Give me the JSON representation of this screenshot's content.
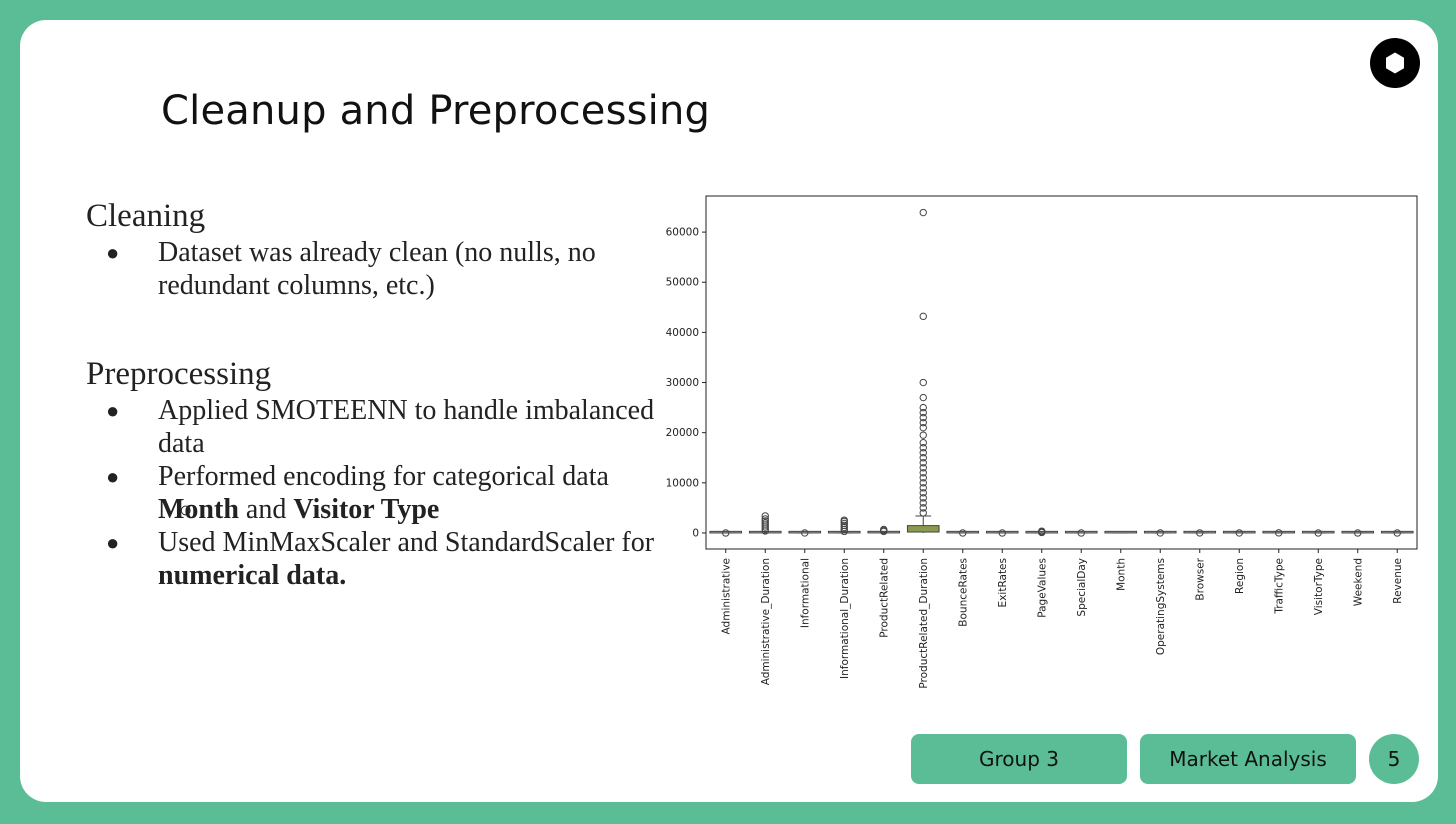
{
  "slide": {
    "title": "Cleanup and Preprocessing",
    "cleaning": {
      "heading": "Cleaning",
      "bullets": [
        "Dataset was already clean (no nulls, no redundant columns, etc.)"
      ]
    },
    "preprocessing": {
      "heading": "Preprocessing",
      "bullet1": "Applied SMOTEENN to handle imbalanced data",
      "bullet2": "Performed encoding for categorical data",
      "sub_part1": "Month",
      "sub_part2": " and ",
      "sub_part3": "Visitor Type",
      "bullet3_part1": "Used MinMaxScaler and StandardScaler for ",
      "bullet3_part2": "numerical data."
    },
    "footer": {
      "group": "Group 3",
      "topic": "Market Analysis",
      "page": "5"
    },
    "colors": {
      "accent": "#5bbd96",
      "box_fill": "#b0b4a8",
      "highlight_box": "#8a9a4e"
    },
    "icons": {
      "logo": "hexagon-logo-icon",
      "bullet": "filled-circle",
      "sub_bullet": "hollow-circle"
    }
  },
  "chart_data": {
    "type": "box",
    "categories": [
      "Administrative",
      "Administrative_Duration",
      "Informational",
      "Informational_Duration",
      "ProductRelated",
      "ProductRelated_Duration",
      "BounceRates",
      "ExitRates",
      "PageValues",
      "SpecialDay",
      "Month",
      "OperatingSystems",
      "Browser",
      "Region",
      "TrafficType",
      "VisitorType",
      "Weekend",
      "Revenue"
    ],
    "y_ticks": [
      0,
      10000,
      20000,
      30000,
      40000,
      50000,
      60000
    ],
    "ylim": [
      -3200,
      67200
    ],
    "boxes": [
      {
        "q1": 0,
        "q3": 4,
        "whisker_low": 0,
        "whisker_high": 10,
        "outliers": [
          0
        ]
      },
      {
        "q1": 0,
        "q3": 93,
        "whisker_low": 0,
        "whisker_high": 232,
        "outliers": [
          400,
          800,
          1200,
          1600,
          2000,
          2400,
          2800,
          3400
        ]
      },
      {
        "q1": 0,
        "q3": 0,
        "whisker_low": 0,
        "whisker_high": 0,
        "outliers": [
          5
        ]
      },
      {
        "q1": 0,
        "q3": 0,
        "whisker_low": 0,
        "whisker_high": 0,
        "outliers": [
          300,
          700,
          1100,
          1500,
          1900,
          2300,
          2550
        ]
      },
      {
        "q1": 7,
        "q3": 38,
        "whisker_low": 0,
        "whisker_high": 84,
        "outliers": [
          300,
          500,
          700
        ]
      },
      {
        "q1": 184,
        "q3": 1464,
        "whisker_low": 0,
        "whisker_high": 3384,
        "outliers": [
          4000,
          5000,
          6000,
          7000,
          8000,
          9000,
          10000,
          11000,
          12000,
          13000,
          14000,
          15000,
          16000,
          17000,
          18000,
          19500,
          21000,
          22000,
          23000,
          24000,
          25000,
          27000,
          30000,
          43200,
          63900
        ]
      },
      {
        "q1": 0,
        "q3": 0,
        "whisker_low": 0,
        "whisker_high": 0,
        "outliers": [
          0
        ]
      },
      {
        "q1": 0,
        "q3": 0,
        "whisker_low": 0,
        "whisker_high": 0,
        "outliers": [
          0
        ]
      },
      {
        "q1": 0,
        "q3": 0,
        "whisker_low": 0,
        "whisker_high": 0,
        "outliers": [
          100,
          250,
          360
        ]
      },
      {
        "q1": 0,
        "q3": 0,
        "whisker_low": 0,
        "whisker_high": 0,
        "outliers": [
          0
        ]
      },
      {
        "q1": 0,
        "q3": 0,
        "whisker_low": 0,
        "whisker_high": 0,
        "outliers": []
      },
      {
        "q1": 2,
        "q3": 3,
        "whisker_low": 1,
        "whisker_high": 4,
        "outliers": [
          8
        ]
      },
      {
        "q1": 2,
        "q3": 2,
        "whisker_low": 2,
        "whisker_high": 2,
        "outliers": [
          13
        ]
      },
      {
        "q1": 1,
        "q3": 4,
        "whisker_low": 1,
        "whisker_high": 9,
        "outliers": [
          9
        ]
      },
      {
        "q1": 2,
        "q3": 4,
        "whisker_low": 1,
        "whisker_high": 7,
        "outliers": [
          20
        ]
      },
      {
        "q1": 2,
        "q3": 2,
        "whisker_low": 2,
        "whisker_high": 2,
        "outliers": [
          0
        ]
      },
      {
        "q1": 0,
        "q3": 0,
        "whisker_low": 0,
        "whisker_high": 0,
        "outliers": [
          1
        ]
      },
      {
        "q1": 0,
        "q3": 0,
        "whisker_low": 0,
        "whisker_high": 0,
        "outliers": [
          1
        ]
      }
    ],
    "grid": false,
    "legend": "none"
  }
}
